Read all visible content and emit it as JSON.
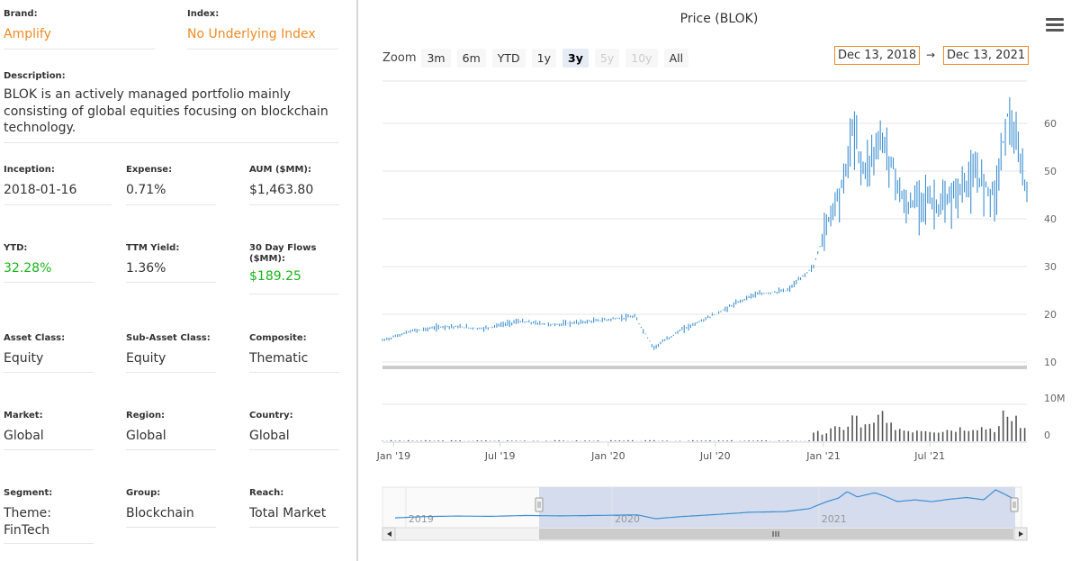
{
  "fields": {
    "brand": {
      "label": "Brand:",
      "value": "Amplify"
    },
    "index": {
      "label": "Index:",
      "value": "No Underlying Index"
    },
    "description": {
      "label": "Description:",
      "value": "BLOK is an actively managed portfolio mainly\nconsisting of global equities focusing on blockchain\ntechnology."
    },
    "inception": {
      "label": "Inception:",
      "value": "2018-01-16"
    },
    "expense": {
      "label": "Expense:",
      "value": "0.71%"
    },
    "aum": {
      "label": "AUM ($MM):",
      "value": "$1,463.80"
    },
    "ytd": {
      "label": "YTD:",
      "value": "32.28%"
    },
    "ttm_yield": {
      "label": "TTM Yield:",
      "value": "1.36%"
    },
    "flows": {
      "label": "30 Day Flows\n($MM):",
      "value": "$189.25"
    },
    "asset_class": {
      "label": "Asset Class:",
      "value": "Equity"
    },
    "sub_asset_class": {
      "label": "Sub-Asset Class:",
      "value": "Equity"
    },
    "composite": {
      "label": "Composite:",
      "value": "Thematic"
    },
    "market": {
      "label": "Market:",
      "value": "Global"
    },
    "region": {
      "label": "Region:",
      "value": "Global"
    },
    "country": {
      "label": "Country:",
      "value": "Global"
    },
    "segment": {
      "label": "Segment:",
      "value": "Theme:\nFinTech"
    },
    "group": {
      "label": "Group:",
      "value": "Blockchain"
    },
    "reach": {
      "label": "Reach:",
      "value": "Total Market"
    }
  },
  "chart": {
    "title": "Price (BLOK)",
    "zoom_label": "Zoom",
    "zoom_buttons": [
      {
        "label": "3m",
        "state": "normal"
      },
      {
        "label": "6m",
        "state": "normal"
      },
      {
        "label": "YTD",
        "state": "normal"
      },
      {
        "label": "1y",
        "state": "normal"
      },
      {
        "label": "3y",
        "state": "active"
      },
      {
        "label": "5y",
        "state": "disabled"
      },
      {
        "label": "10y",
        "state": "disabled"
      },
      {
        "label": "All",
        "state": "normal"
      }
    ],
    "date_from": "Dec 13, 2018",
    "date_arrow": "→",
    "date_to": "Dec 13, 2021",
    "price_axis_ticks": [
      "60",
      "50",
      "40",
      "30",
      "20",
      "10"
    ],
    "volume_axis_ticks": [
      "10M",
      "0"
    ],
    "x_axis_ticks": [
      "Jan '19",
      "Jul '19",
      "Jan '20",
      "Jul '20",
      "Jan '21",
      "Jul '21"
    ],
    "navigator_labels": [
      "2019",
      "2020",
      "2021"
    ],
    "colors": {
      "price": "#3d8fd1",
      "volume": "#555555",
      "accent": "#f08a24",
      "nav_mask": "#ccd6eb"
    }
  },
  "chart_data": {
    "type": "line",
    "title": "Price (BLOK)",
    "x_range": [
      "Dec 13, 2018",
      "Dec 13, 2021"
    ],
    "ylim": [
      10,
      65
    ],
    "series": [
      {
        "name": "BLOK",
        "x": [
          "2018-12-13",
          "2019-02-01",
          "2019-04-01",
          "2019-06-01",
          "2019-08-01",
          "2019-10-01",
          "2019-12-01",
          "2020-02-15",
          "2020-03-18",
          "2020-05-01",
          "2020-07-01",
          "2020-09-01",
          "2020-11-01",
          "2020-12-15",
          "2021-01-15",
          "2021-02-05",
          "2021-02-20",
          "2021-03-10",
          "2021-04-10",
          "2021-05-01",
          "2021-05-20",
          "2021-06-20",
          "2021-07-20",
          "2021-08-20",
          "2021-09-20",
          "2021-10-20",
          "2021-11-10",
          "2021-11-25",
          "2021-12-13"
        ],
        "y": [
          14.5,
          16.5,
          17.5,
          17,
          18.5,
          17.8,
          18.5,
          19.5,
          13,
          16.5,
          20,
          24,
          25,
          30,
          42,
          48,
          59,
          50,
          57,
          50,
          42,
          45,
          42,
          46,
          49,
          45,
          62,
          55,
          46
        ]
      }
    ]
  }
}
